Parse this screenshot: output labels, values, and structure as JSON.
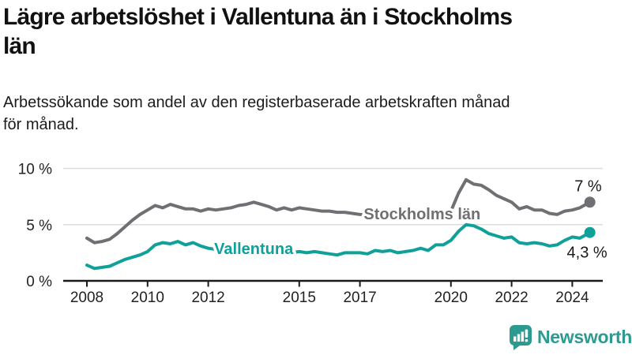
{
  "header": {
    "title_lines": [
      "Lägre arbetslöshet i Vallentuna än i Stockholms",
      "län"
    ],
    "subtitle_lines": [
      "Arbetssökande som andel av den registerbaserade arbetskraften månad",
      "för månad."
    ]
  },
  "footer": {
    "brand": "Newsworthy",
    "icon": "bar-chart-speech-bubble-icon",
    "brand_color": "#2d9a91"
  },
  "colors": {
    "stockholm_line": "#707074",
    "vallentuna_line": "#0fa199",
    "axis": "#1a1a1a",
    "grid": "#dcdcdc",
    "tick_text": "#222222",
    "annotation_text": "#1a1a1a"
  },
  "chart_data": {
    "type": "line",
    "title": "Lägre arbetslöshet i Vallentuna än i Stockholms län",
    "subtitle": "Arbetssökande som andel av den registerbaserade arbetskraften månad för månad.",
    "grid": "horizontal",
    "x_axis": {
      "ticks": [
        2008,
        2010,
        2012,
        2015,
        2017,
        2020,
        2022,
        2024
      ],
      "range": [
        2007.8,
        2025.1
      ]
    },
    "y_axis": {
      "ticks": [
        0,
        5,
        10
      ],
      "tick_labels": [
        "0 %",
        "5 %",
        "10 %"
      ],
      "range": [
        0,
        10.5
      ],
      "unit": "%"
    },
    "series": [
      {
        "name": "Stockholms län",
        "color": "#707074",
        "end_label": "7 %",
        "end_value": 7.0,
        "label_anchor": [
          2019.05,
          5.47
        ],
        "end_label_offset": [
          15,
          -14
        ],
        "points": [
          [
            2008.0,
            3.8
          ],
          [
            2008.25,
            3.4
          ],
          [
            2008.5,
            3.5
          ],
          [
            2008.75,
            3.7
          ],
          [
            2009.0,
            4.2
          ],
          [
            2009.25,
            4.8
          ],
          [
            2009.5,
            5.4
          ],
          [
            2009.75,
            5.9
          ],
          [
            2010.0,
            6.3
          ],
          [
            2010.25,
            6.7
          ],
          [
            2010.5,
            6.5
          ],
          [
            2010.75,
            6.8
          ],
          [
            2011.0,
            6.6
          ],
          [
            2011.25,
            6.4
          ],
          [
            2011.5,
            6.4
          ],
          [
            2011.75,
            6.2
          ],
          [
            2012.0,
            6.4
          ],
          [
            2012.25,
            6.3
          ],
          [
            2012.5,
            6.4
          ],
          [
            2012.75,
            6.5
          ],
          [
            2013.0,
            6.7
          ],
          [
            2013.25,
            6.8
          ],
          [
            2013.5,
            7.0
          ],
          [
            2013.75,
            6.8
          ],
          [
            2014.0,
            6.6
          ],
          [
            2014.25,
            6.3
          ],
          [
            2014.5,
            6.5
          ],
          [
            2014.75,
            6.3
          ],
          [
            2015.0,
            6.5
          ],
          [
            2015.25,
            6.4
          ],
          [
            2015.5,
            6.3
          ],
          [
            2015.75,
            6.2
          ],
          [
            2016.0,
            6.2
          ],
          [
            2016.25,
            6.1
          ],
          [
            2016.5,
            6.1
          ],
          [
            2016.75,
            6.0
          ],
          [
            2017.0,
            5.9
          ],
          [
            2017.25,
            5.9
          ],
          [
            2017.5,
            5.8
          ],
          [
            2017.75,
            5.8
          ],
          [
            2018.0,
            5.7
          ],
          [
            2018.25,
            5.6
          ],
          [
            2018.5,
            5.6
          ],
          [
            2018.75,
            5.7
          ],
          [
            2019.0,
            5.7
          ],
          [
            2019.25,
            5.8
          ],
          [
            2019.5,
            5.9
          ],
          [
            2019.75,
            6.0
          ],
          [
            2020.0,
            6.2
          ],
          [
            2020.25,
            7.8
          ],
          [
            2020.5,
            9.0
          ],
          [
            2020.75,
            8.6
          ],
          [
            2021.0,
            8.5
          ],
          [
            2021.25,
            8.1
          ],
          [
            2021.5,
            7.6
          ],
          [
            2021.75,
            7.3
          ],
          [
            2022.0,
            7.0
          ],
          [
            2022.25,
            6.4
          ],
          [
            2022.5,
            6.6
          ],
          [
            2022.75,
            6.3
          ],
          [
            2023.0,
            6.3
          ],
          [
            2023.25,
            6.0
          ],
          [
            2023.5,
            5.9
          ],
          [
            2023.75,
            6.2
          ],
          [
            2024.0,
            6.3
          ],
          [
            2024.25,
            6.5
          ],
          [
            2024.58,
            7.0
          ]
        ]
      },
      {
        "name": "Vallentuna",
        "color": "#0fa199",
        "end_label": "4,3 %",
        "end_value": 4.3,
        "label_anchor": [
          2013.5,
          2.39
        ],
        "end_label_offset": [
          22,
          32
        ],
        "points": [
          [
            2008.0,
            1.4
          ],
          [
            2008.25,
            1.1
          ],
          [
            2008.5,
            1.2
          ],
          [
            2008.75,
            1.3
          ],
          [
            2009.0,
            1.6
          ],
          [
            2009.25,
            1.9
          ],
          [
            2009.5,
            2.1
          ],
          [
            2009.75,
            2.3
          ],
          [
            2010.0,
            2.6
          ],
          [
            2010.25,
            3.2
          ],
          [
            2010.5,
            3.4
          ],
          [
            2010.75,
            3.3
          ],
          [
            2011.0,
            3.5
          ],
          [
            2011.25,
            3.2
          ],
          [
            2011.5,
            3.4
          ],
          [
            2011.75,
            3.1
          ],
          [
            2012.0,
            2.9
          ],
          [
            2012.25,
            2.8
          ],
          [
            2012.5,
            2.9
          ],
          [
            2012.75,
            3.0
          ],
          [
            2013.0,
            2.9
          ],
          [
            2013.25,
            2.8
          ],
          [
            2013.5,
            2.6
          ],
          [
            2013.75,
            2.5
          ],
          [
            2014.0,
            2.4
          ],
          [
            2014.25,
            2.5
          ],
          [
            2014.5,
            2.4
          ],
          [
            2014.75,
            2.5
          ],
          [
            2015.0,
            2.6
          ],
          [
            2015.25,
            2.5
          ],
          [
            2015.5,
            2.6
          ],
          [
            2015.75,
            2.5
          ],
          [
            2016.0,
            2.4
          ],
          [
            2016.25,
            2.3
          ],
          [
            2016.5,
            2.5
          ],
          [
            2016.75,
            2.5
          ],
          [
            2017.0,
            2.5
          ],
          [
            2017.25,
            2.4
          ],
          [
            2017.5,
            2.7
          ],
          [
            2017.75,
            2.6
          ],
          [
            2018.0,
            2.7
          ],
          [
            2018.25,
            2.5
          ],
          [
            2018.5,
            2.6
          ],
          [
            2018.75,
            2.7
          ],
          [
            2019.0,
            2.9
          ],
          [
            2019.25,
            2.7
          ],
          [
            2019.5,
            3.2
          ],
          [
            2019.75,
            3.2
          ],
          [
            2020.0,
            3.6
          ],
          [
            2020.25,
            4.4
          ],
          [
            2020.5,
            5.0
          ],
          [
            2020.75,
            4.9
          ],
          [
            2021.0,
            4.6
          ],
          [
            2021.25,
            4.2
          ],
          [
            2021.5,
            4.0
          ],
          [
            2021.75,
            3.8
          ],
          [
            2022.0,
            3.9
          ],
          [
            2022.25,
            3.4
          ],
          [
            2022.5,
            3.3
          ],
          [
            2022.75,
            3.4
          ],
          [
            2023.0,
            3.3
          ],
          [
            2023.25,
            3.1
          ],
          [
            2023.5,
            3.2
          ],
          [
            2023.75,
            3.6
          ],
          [
            2024.0,
            3.9
          ],
          [
            2024.25,
            3.8
          ],
          [
            2024.58,
            4.3
          ]
        ]
      }
    ]
  }
}
